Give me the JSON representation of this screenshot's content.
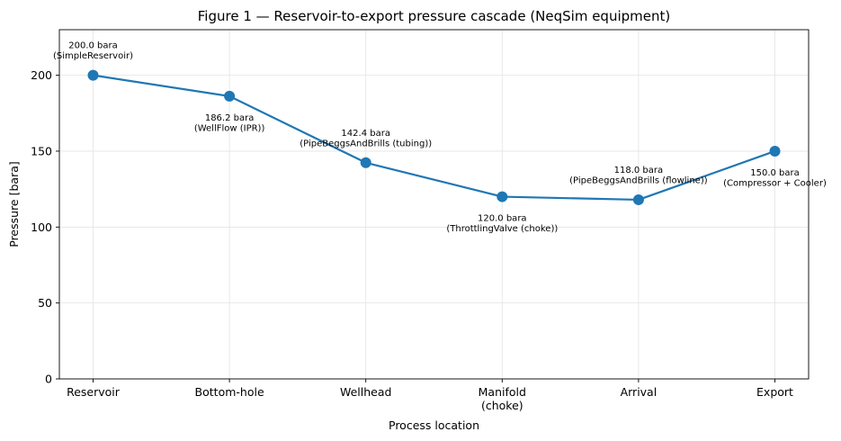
{
  "chart_data": {
    "type": "line",
    "title": "Figure 1 — Reservoir-to-export pressure cascade (NeqSim equipment)",
    "xlabel": "Process location",
    "ylabel": "Pressure [bara]",
    "ylim": [
      0,
      230
    ],
    "yticks": [
      0,
      50,
      100,
      150,
      200
    ],
    "grid": true,
    "categories": [
      [
        "Reservoir"
      ],
      [
        "Bottom-hole"
      ],
      [
        "Wellhead"
      ],
      [
        "Manifold",
        "(choke)"
      ],
      [
        "Arrival"
      ],
      [
        "Export"
      ]
    ],
    "series": [
      {
        "values": [
          200.0,
          186.2,
          142.4,
          120.0,
          118.0,
          150.0
        ],
        "color": "#1f77b4"
      }
    ],
    "annotations": [
      {
        "lines": [
          "200.0 bara",
          "(SimpleReservoir)"
        ],
        "placement": "above"
      },
      {
        "lines": [
          "186.2 bara",
          "(WellFlow (IPR))"
        ],
        "placement": "below"
      },
      {
        "lines": [
          "142.4 bara",
          "(PipeBeggsAndBrills (tubing))"
        ],
        "placement": "above"
      },
      {
        "lines": [
          "120.0 bara",
          "(ThrottlingValve (choke))"
        ],
        "placement": "below"
      },
      {
        "lines": [
          "118.0 bara",
          "(PipeBeggsAndBrills (flowline))"
        ],
        "placement": "above"
      },
      {
        "lines": [
          "150.0 bara",
          "(Compressor + Cooler)"
        ],
        "placement": "below"
      }
    ]
  }
}
